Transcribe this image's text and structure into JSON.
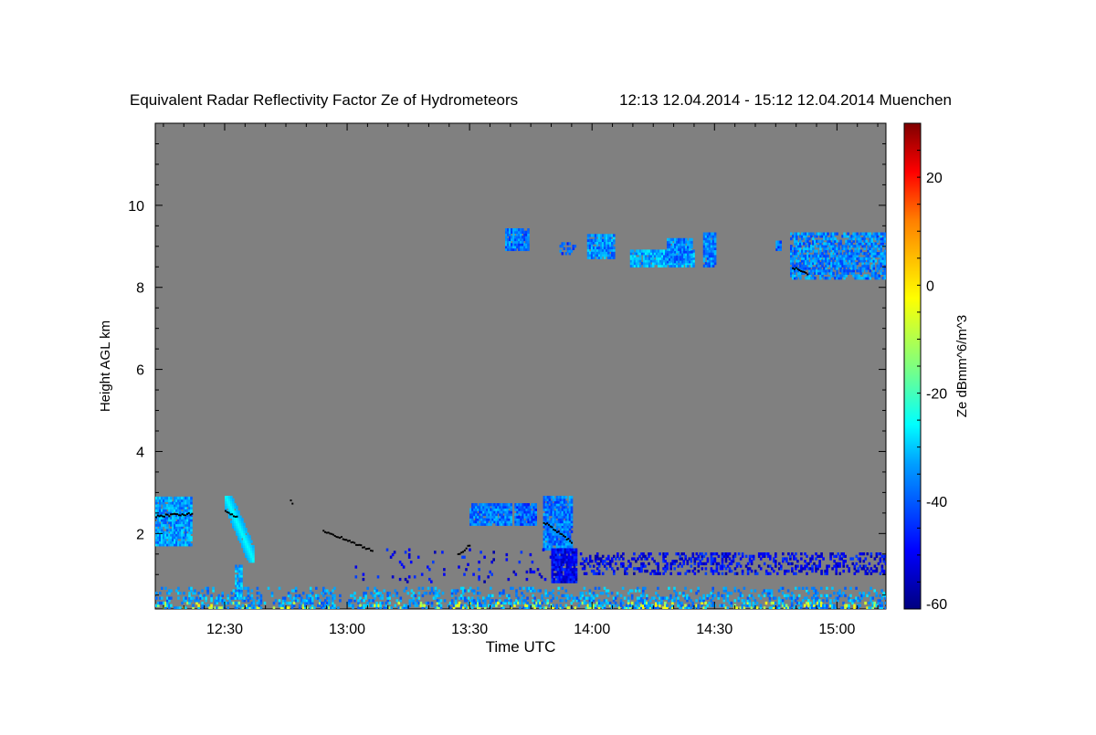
{
  "chart_data": {
    "type": "heatmap",
    "title": "Equivalent Radar Reflectivity Factor Ze of Hydrometeors",
    "subtitle": "12:13 12.04.2014 - 15:12 12.04.2014 Muenchen",
    "xlabel": "Time UTC",
    "ylabel": "Height AGL km",
    "x_start": "12:13",
    "x_end": "15:12",
    "xlim_minutes": [
      0,
      179
    ],
    "x_ticks": [
      {
        "label": "12:30",
        "minute": 17
      },
      {
        "label": "13:00",
        "minute": 47
      },
      {
        "label": "13:30",
        "minute": 77
      },
      {
        "label": "14:00",
        "minute": 107
      },
      {
        "label": "14:30",
        "minute": 137
      },
      {
        "label": "15:00",
        "minute": 167
      }
    ],
    "ylim": [
      0.16,
      12
    ],
    "y_ticks": [
      {
        "label": "2",
        "value": 2
      },
      {
        "label": "4",
        "value": 4
      },
      {
        "label": "6",
        "value": 6
      },
      {
        "label": "8",
        "value": 8
      },
      {
        "label": "10",
        "value": 10
      }
    ],
    "colorbar": {
      "label": "Ze dBmm^6/m^3",
      "range": [
        -60,
        30
      ],
      "ticks": [
        {
          "label": "20",
          "value": 20
        },
        {
          "label": "0",
          "value": 0
        },
        {
          "label": "-20",
          "value": -20
        },
        {
          "label": "-40",
          "value": -40
        },
        {
          "label": "-60",
          "value": -60
        }
      ]
    },
    "background_color": "#808080",
    "echoes": [
      {
        "name": "low-cloud-1",
        "t": [
          0,
          9
        ],
        "h": [
          1.7,
          2.9
        ],
        "ze": -35
      },
      {
        "name": "fallstreak-1",
        "t": [
          17,
          24
        ],
        "h": [
          1.3,
          2.9
        ],
        "ze": -30,
        "slant": 3
      },
      {
        "name": "fallstreak-1-lower",
        "t": [
          19.5,
          21
        ],
        "h": [
          0.4,
          1.2
        ],
        "ze": -33
      },
      {
        "name": "low-cloud-2",
        "t": [
          77,
          87
        ],
        "h": [
          2.2,
          2.7
        ],
        "ze": -38
      },
      {
        "name": "low-cloud-3",
        "t": [
          88,
          93
        ],
        "h": [
          2.2,
          2.7
        ],
        "ze": -40
      },
      {
        "name": "low-cloud-4",
        "t": [
          95,
          102
        ],
        "h": [
          1.6,
          2.9
        ],
        "ze": -38
      },
      {
        "name": "low-cloud-4-base",
        "t": [
          97,
          103
        ],
        "h": [
          0.8,
          1.6
        ],
        "ze": -50
      },
      {
        "name": "low-precip-scatter",
        "t": [
          104,
          179
        ],
        "h": [
          1.0,
          1.5
        ],
        "ze": -50,
        "density": 0.35
      },
      {
        "name": "mid-scatter",
        "t": [
          48,
          100
        ],
        "h": [
          0.8,
          1.6
        ],
        "ze": -50,
        "density": 0.06
      },
      {
        "name": "cirrus-1",
        "t": [
          85.7,
          91.3
        ],
        "h": [
          8.9,
          9.4
        ],
        "ze": -38
      },
      {
        "name": "cirrus-2",
        "t": [
          99,
          103
        ],
        "h": [
          8.8,
          9.1
        ],
        "ze": -40,
        "density": 0.4
      },
      {
        "name": "cirrus-3",
        "t": [
          105.8,
          112.5
        ],
        "h": [
          8.7,
          9.3
        ],
        "ze": -36
      },
      {
        "name": "cirrus-4",
        "t": [
          116.3,
          132
        ],
        "h": [
          8.5,
          8.9
        ],
        "ze": -34
      },
      {
        "name": "cirrus-5",
        "t": [
          125.3,
          131.5
        ],
        "h": [
          8.6,
          9.2
        ],
        "ze": -37
      },
      {
        "name": "cirrus-6",
        "t": [
          134.2,
          137.2
        ],
        "h": [
          8.5,
          9.3
        ],
        "ze": -37
      },
      {
        "name": "cirrus-7",
        "t": [
          152,
          153
        ],
        "h": [
          8.9,
          9.1
        ],
        "ze": -40
      },
      {
        "name": "cirrus-8",
        "t": [
          155.5,
          179
        ],
        "h": [
          8.2,
          9.3
        ],
        "ze": -37,
        "density": 0.7
      },
      {
        "name": "clutter",
        "t": [
          0,
          179
        ],
        "h": [
          0.16,
          0.7
        ],
        "ze": -35,
        "density": 0.55
      }
    ],
    "markers": [
      {
        "t": [
          0,
          9
        ],
        "h": [
          2.45,
          2.5
        ]
      },
      {
        "t": [
          17,
          20
        ],
        "h": [
          2.55,
          2.4
        ]
      },
      {
        "t": [
          33,
          33.5
        ],
        "h": [
          2.8,
          2.75
        ]
      },
      {
        "t": [
          41,
          53
        ],
        "h": [
          2.1,
          1.6
        ]
      },
      {
        "t": [
          74,
          77
        ],
        "h": [
          1.5,
          1.75
        ]
      },
      {
        "t": [
          95,
          102
        ],
        "h": [
          2.3,
          1.8
        ]
      },
      {
        "t": [
          156,
          160
        ],
        "h": [
          8.5,
          8.35
        ]
      }
    ]
  }
}
